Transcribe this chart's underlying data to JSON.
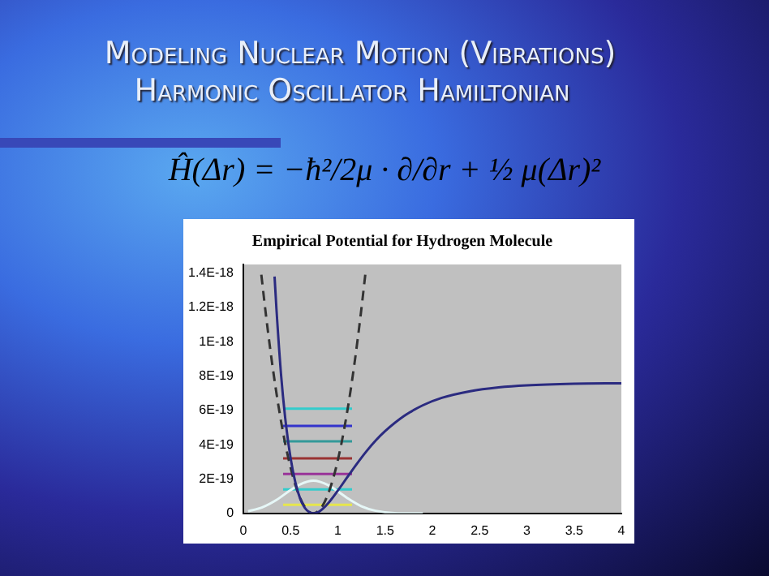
{
  "chart_data": {
    "type": "line",
    "title": "Empirical Potential for Hydrogen Molecule",
    "annotations": [
      "Modeling Nuclear Motion (Vibrations)",
      "Harmonic Oscillator Hamiltonian",
      "Ĥ(Δr) = −ħ²/2μ · ∂/∂r + ½ μ(Δr)²"
    ],
    "xlim": [
      0,
      4
    ],
    "xticks": [
      0,
      0.5,
      1,
      1.5,
      2,
      2.5,
      3,
      3.5,
      4
    ],
    "ylim": [
      0,
      1.45e-18
    ],
    "yticks": [
      0,
      {
        "value": 2e-19,
        "label": "2E-19"
      },
      {
        "value": 4e-19,
        "label": "4E-19"
      },
      {
        "value": 6e-19,
        "label": "6E-19"
      },
      {
        "value": 8e-19,
        "label": "8E-19"
      },
      {
        "value": 1e-18,
        "label": "1E-18"
      },
      {
        "value": 1.2e-18,
        "label": "1.2E-18"
      },
      {
        "value": 1.4e-18,
        "label": "1.4E-18"
      }
    ],
    "legend": false,
    "marker": "none",
    "line_style": "solid",
    "series": [
      {
        "color": "#2b2b80",
        "x": [
          0.33,
          0.35,
          0.4,
          0.45,
          0.5,
          0.55,
          0.6,
          0.65,
          0.7,
          0.74,
          0.8,
          0.9,
          1.0,
          1.1,
          1.2,
          1.3,
          1.4,
          1.5,
          1.7,
          1.9,
          2.1,
          2.4,
          2.7,
          3.0,
          3.5,
          4.0
        ],
        "values": [
          1.38e-18,
          1.19e-18,
          8e-19,
          5.2e-19,
          3.2e-19,
          1.8e-19,
          8.7e-20,
          3.2e-20,
          6e-21,
          0,
          1e-20,
          6.1e-20,
          1.33e-19,
          2.11e-19,
          2.88e-19,
          3.6e-19,
          4.24e-19,
          4.79e-19,
          5.67e-19,
          6.3e-19,
          6.73e-19,
          7.12e-19,
          7.34e-19,
          7.46e-19,
          7.55e-19,
          7.58e-19
        ]
      },
      {
        "color": "#333333",
        "line_style": "dashed",
        "x": [
          0.19,
          0.24,
          0.29,
          0.34,
          0.39,
          0.44,
          0.49,
          0.54,
          0.59,
          0.64,
          0.69,
          0.74,
          0.79,
          0.84,
          0.89,
          0.94,
          0.99,
          1.04,
          1.09,
          1.14,
          1.19,
          1.24,
          1.29
        ],
        "values": [
          1.39e-18,
          1.15e-18,
          9.32e-19,
          7.36e-19,
          5.64e-19,
          4.14e-19,
          2.88e-19,
          1.84e-19,
          1.04e-19,
          4.6e-20,
          1.2e-20,
          0,
          1.2e-20,
          4.6e-20,
          1.04e-19,
          1.84e-19,
          2.88e-19,
          4.14e-19,
          5.64e-19,
          7.36e-19,
          9.32e-19,
          1.15e-18,
          1.39e-18
        ]
      },
      {
        "color": "#e6f7f7",
        "x": [
          0.05,
          0.2,
          0.35,
          0.5,
          0.6,
          0.74,
          0.9,
          1.0,
          1.1,
          1.25,
          1.4,
          1.6,
          1.9
        ],
        "values": [
          1.2e-20,
          3.5e-20,
          7.8e-20,
          1.36e-19,
          1.69e-19,
          1.9e-19,
          1.64e-19,
          1.28e-19,
          8.9e-20,
          4.1e-20,
          1.5e-20,
          2e-21,
          0
        ]
      },
      {
        "color": "#e6e64d",
        "x": [
          0.42,
          1.15
        ],
        "values": [
          5e-20,
          5e-20
        ]
      },
      {
        "color": "#33cccc",
        "x": [
          0.42,
          1.15
        ],
        "values": [
          1.4e-19,
          1.4e-19
        ]
      },
      {
        "color": "#993399",
        "x": [
          0.42,
          1.15
        ],
        "values": [
          2.3e-19,
          2.3e-19
        ]
      },
      {
        "color": "#993333",
        "x": [
          0.42,
          1.15
        ],
        "values": [
          3.2e-19,
          3.2e-19
        ]
      },
      {
        "color": "#339999",
        "x": [
          0.42,
          1.15
        ],
        "values": [
          4.2e-19,
          4.2e-19
        ]
      },
      {
        "color": "#3333cc",
        "x": [
          0.42,
          1.15
        ],
        "values": [
          5.1e-19,
          5.1e-19
        ]
      },
      {
        "color": "#33cccc",
        "x": [
          0.42,
          1.15
        ],
        "values": [
          6.1e-19,
          6.1e-19
        ]
      }
    ]
  }
}
